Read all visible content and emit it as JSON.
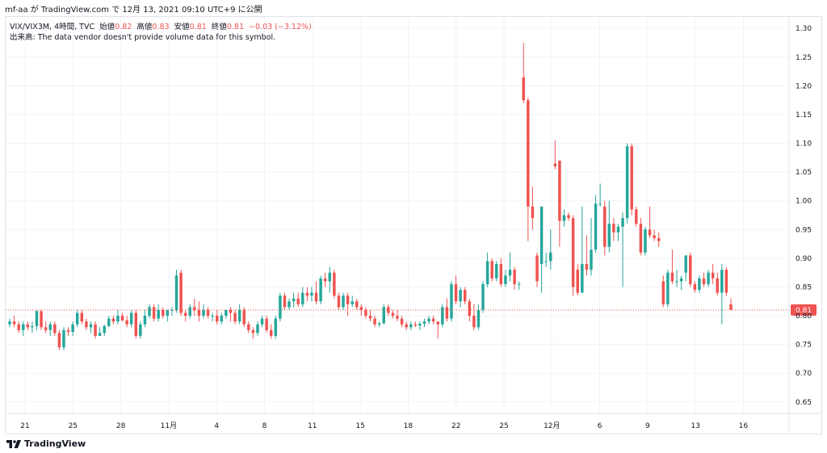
{
  "header": {
    "publish_info": "mf-aa が TradingView.com で 12月 13, 2021 09:10 UTC+9 に公開"
  },
  "legend": {
    "symbol": "VIX/VIX3M, 4時間, TVC",
    "open_label": "始値",
    "open_value": "0.82",
    "high_label": "高値",
    "high_value": "0.83",
    "low_label": "安値",
    "low_value": "0.81",
    "close_label": "終値",
    "close_value": "0.81",
    "change": "−0.03 (−3.12%)",
    "volume_note": "出来高: The data vendor doesn't provide volume data for this symbol."
  },
  "footer": {
    "brand": "TradingView"
  },
  "colors": {
    "up": "#26a69a",
    "down": "#ef5350",
    "grid": "#f0f3fa",
    "axis_text": "#131722"
  },
  "chart_data": {
    "type": "candlestick",
    "ylim": [
      0.63,
      1.32
    ],
    "y_ticks": [
      "1.30",
      "1.25",
      "1.20",
      "1.15",
      "1.10",
      "1.05",
      "1.00",
      "0.95",
      "0.90",
      "0.85",
      "0.80",
      "0.75",
      "0.70",
      "0.65"
    ],
    "x_ticks": [
      "21",
      "25",
      "28",
      "11月",
      "4",
      "8",
      "11",
      "15",
      "18",
      "22",
      "25",
      "12月",
      "6",
      "9",
      "13",
      "16"
    ],
    "last_price_label": "0.81",
    "last_price": 0.81,
    "candles": [
      {
        "o": 0.785,
        "h": 0.795,
        "l": 0.78,
        "c": 0.79
      },
      {
        "o": 0.79,
        "h": 0.8,
        "l": 0.78,
        "c": 0.785
      },
      {
        "o": 0.785,
        "h": 0.79,
        "l": 0.77,
        "c": 0.775
      },
      {
        "o": 0.775,
        "h": 0.79,
        "l": 0.765,
        "c": 0.785
      },
      {
        "o": 0.785,
        "h": 0.79,
        "l": 0.775,
        "c": 0.78
      },
      {
        "o": 0.78,
        "h": 0.79,
        "l": 0.77,
        "c": 0.782
      },
      {
        "o": 0.782,
        "h": 0.81,
        "l": 0.775,
        "c": 0.808
      },
      {
        "o": 0.808,
        "h": 0.81,
        "l": 0.775,
        "c": 0.78
      },
      {
        "o": 0.78,
        "h": 0.79,
        "l": 0.77,
        "c": 0.775
      },
      {
        "o": 0.775,
        "h": 0.79,
        "l": 0.765,
        "c": 0.785
      },
      {
        "o": 0.785,
        "h": 0.79,
        "l": 0.765,
        "c": 0.77
      },
      {
        "o": 0.77,
        "h": 0.775,
        "l": 0.74,
        "c": 0.745
      },
      {
        "o": 0.745,
        "h": 0.78,
        "l": 0.74,
        "c": 0.775
      },
      {
        "o": 0.775,
        "h": 0.78,
        "l": 0.765,
        "c": 0.772
      },
      {
        "o": 0.772,
        "h": 0.79,
        "l": 0.765,
        "c": 0.785
      },
      {
        "o": 0.785,
        "h": 0.81,
        "l": 0.78,
        "c": 0.805
      },
      {
        "o": 0.805,
        "h": 0.81,
        "l": 0.785,
        "c": 0.79
      },
      {
        "o": 0.79,
        "h": 0.795,
        "l": 0.775,
        "c": 0.78
      },
      {
        "o": 0.78,
        "h": 0.79,
        "l": 0.77,
        "c": 0.785
      },
      {
        "o": 0.785,
        "h": 0.79,
        "l": 0.76,
        "c": 0.765
      },
      {
        "o": 0.765,
        "h": 0.78,
        "l": 0.765,
        "c": 0.77
      },
      {
        "o": 0.77,
        "h": 0.785,
        "l": 0.765,
        "c": 0.782
      },
      {
        "o": 0.782,
        "h": 0.8,
        "l": 0.78,
        "c": 0.795
      },
      {
        "o": 0.795,
        "h": 0.8,
        "l": 0.785,
        "c": 0.79
      },
      {
        "o": 0.79,
        "h": 0.81,
        "l": 0.785,
        "c": 0.8
      },
      {
        "o": 0.8,
        "h": 0.805,
        "l": 0.79,
        "c": 0.792
      },
      {
        "o": 0.792,
        "h": 0.8,
        "l": 0.78,
        "c": 0.785
      },
      {
        "o": 0.785,
        "h": 0.81,
        "l": 0.78,
        "c": 0.805
      },
      {
        "o": 0.805,
        "h": 0.81,
        "l": 0.76,
        "c": 0.765
      },
      {
        "o": 0.765,
        "h": 0.79,
        "l": 0.76,
        "c": 0.785
      },
      {
        "o": 0.785,
        "h": 0.81,
        "l": 0.78,
        "c": 0.8
      },
      {
        "o": 0.8,
        "h": 0.82,
        "l": 0.795,
        "c": 0.815
      },
      {
        "o": 0.815,
        "h": 0.82,
        "l": 0.79,
        "c": 0.795
      },
      {
        "o": 0.795,
        "h": 0.82,
        "l": 0.79,
        "c": 0.81
      },
      {
        "o": 0.81,
        "h": 0.815,
        "l": 0.795,
        "c": 0.8
      },
      {
        "o": 0.8,
        "h": 0.81,
        "l": 0.79,
        "c": 0.81
      },
      {
        "o": 0.81,
        "h": 0.815,
        "l": 0.8,
        "c": 0.81
      },
      {
        "o": 0.81,
        "h": 0.88,
        "l": 0.805,
        "c": 0.87
      },
      {
        "o": 0.875,
        "h": 0.88,
        "l": 0.8,
        "c": 0.805
      },
      {
        "o": 0.805,
        "h": 0.81,
        "l": 0.79,
        "c": 0.8
      },
      {
        "o": 0.8,
        "h": 0.82,
        "l": 0.795,
        "c": 0.815
      },
      {
        "o": 0.815,
        "h": 0.83,
        "l": 0.8,
        "c": 0.81
      },
      {
        "o": 0.81,
        "h": 0.825,
        "l": 0.79,
        "c": 0.8
      },
      {
        "o": 0.8,
        "h": 0.82,
        "l": 0.795,
        "c": 0.81
      },
      {
        "o": 0.81,
        "h": 0.815,
        "l": 0.795,
        "c": 0.8
      },
      {
        "o": 0.8,
        "h": 0.805,
        "l": 0.79,
        "c": 0.8
      },
      {
        "o": 0.8,
        "h": 0.81,
        "l": 0.785,
        "c": 0.79
      },
      {
        "o": 0.79,
        "h": 0.805,
        "l": 0.785,
        "c": 0.8
      },
      {
        "o": 0.8,
        "h": 0.81,
        "l": 0.795,
        "c": 0.81
      },
      {
        "o": 0.81,
        "h": 0.815,
        "l": 0.79,
        "c": 0.805
      },
      {
        "o": 0.805,
        "h": 0.81,
        "l": 0.785,
        "c": 0.79
      },
      {
        "o": 0.79,
        "h": 0.82,
        "l": 0.785,
        "c": 0.81
      },
      {
        "o": 0.81,
        "h": 0.815,
        "l": 0.78,
        "c": 0.785
      },
      {
        "o": 0.785,
        "h": 0.79,
        "l": 0.77,
        "c": 0.775
      },
      {
        "o": 0.775,
        "h": 0.78,
        "l": 0.76,
        "c": 0.77
      },
      {
        "o": 0.77,
        "h": 0.79,
        "l": 0.765,
        "c": 0.785
      },
      {
        "o": 0.785,
        "h": 0.8,
        "l": 0.78,
        "c": 0.795
      },
      {
        "o": 0.795,
        "h": 0.8,
        "l": 0.77,
        "c": 0.775
      },
      {
        "o": 0.775,
        "h": 0.785,
        "l": 0.76,
        "c": 0.765
      },
      {
        "o": 0.765,
        "h": 0.8,
        "l": 0.76,
        "c": 0.795
      },
      {
        "o": 0.795,
        "h": 0.84,
        "l": 0.79,
        "c": 0.835
      },
      {
        "o": 0.835,
        "h": 0.84,
        "l": 0.81,
        "c": 0.815
      },
      {
        "o": 0.815,
        "h": 0.83,
        "l": 0.81,
        "c": 0.825
      },
      {
        "o": 0.825,
        "h": 0.84,
        "l": 0.815,
        "c": 0.83
      },
      {
        "o": 0.83,
        "h": 0.84,
        "l": 0.815,
        "c": 0.82
      },
      {
        "o": 0.82,
        "h": 0.85,
        "l": 0.815,
        "c": 0.84
      },
      {
        "o": 0.84,
        "h": 0.85,
        "l": 0.825,
        "c": 0.835
      },
      {
        "o": 0.835,
        "h": 0.85,
        "l": 0.825,
        "c": 0.84
      },
      {
        "o": 0.84,
        "h": 0.86,
        "l": 0.82,
        "c": 0.825
      },
      {
        "o": 0.825,
        "h": 0.87,
        "l": 0.82,
        "c": 0.865
      },
      {
        "o": 0.865,
        "h": 0.875,
        "l": 0.85,
        "c": 0.86
      },
      {
        "o": 0.86,
        "h": 0.885,
        "l": 0.84,
        "c": 0.875
      },
      {
        "o": 0.875,
        "h": 0.88,
        "l": 0.83,
        "c": 0.835
      },
      {
        "o": 0.835,
        "h": 0.84,
        "l": 0.81,
        "c": 0.815
      },
      {
        "o": 0.815,
        "h": 0.84,
        "l": 0.81,
        "c": 0.835
      },
      {
        "o": 0.835,
        "h": 0.84,
        "l": 0.8,
        "c": 0.82
      },
      {
        "o": 0.82,
        "h": 0.835,
        "l": 0.815,
        "c": 0.825
      },
      {
        "o": 0.825,
        "h": 0.83,
        "l": 0.81,
        "c": 0.815
      },
      {
        "o": 0.815,
        "h": 0.82,
        "l": 0.8,
        "c": 0.81
      },
      {
        "o": 0.81,
        "h": 0.815,
        "l": 0.795,
        "c": 0.8
      },
      {
        "o": 0.8,
        "h": 0.81,
        "l": 0.79,
        "c": 0.795
      },
      {
        "o": 0.795,
        "h": 0.8,
        "l": 0.78,
        "c": 0.785
      },
      {
        "o": 0.785,
        "h": 0.79,
        "l": 0.78,
        "c": 0.787
      },
      {
        "o": 0.787,
        "h": 0.82,
        "l": 0.785,
        "c": 0.815
      },
      {
        "o": 0.815,
        "h": 0.82,
        "l": 0.8,
        "c": 0.805
      },
      {
        "o": 0.805,
        "h": 0.81,
        "l": 0.795,
        "c": 0.8
      },
      {
        "o": 0.8,
        "h": 0.81,
        "l": 0.79,
        "c": 0.795
      },
      {
        "o": 0.795,
        "h": 0.8,
        "l": 0.78,
        "c": 0.785
      },
      {
        "o": 0.785,
        "h": 0.79,
        "l": 0.775,
        "c": 0.78
      },
      {
        "o": 0.78,
        "h": 0.79,
        "l": 0.775,
        "c": 0.785
      },
      {
        "o": 0.785,
        "h": 0.79,
        "l": 0.78,
        "c": 0.783
      },
      {
        "o": 0.783,
        "h": 0.79,
        "l": 0.775,
        "c": 0.786
      },
      {
        "o": 0.786,
        "h": 0.795,
        "l": 0.78,
        "c": 0.79
      },
      {
        "o": 0.79,
        "h": 0.8,
        "l": 0.785,
        "c": 0.795
      },
      {
        "o": 0.795,
        "h": 0.8,
        "l": 0.785,
        "c": 0.79
      },
      {
        "o": 0.79,
        "h": 0.79,
        "l": 0.76,
        "c": 0.785
      },
      {
        "o": 0.785,
        "h": 0.82,
        "l": 0.78,
        "c": 0.815
      },
      {
        "o": 0.815,
        "h": 0.83,
        "l": 0.79,
        "c": 0.795
      },
      {
        "o": 0.795,
        "h": 0.86,
        "l": 0.79,
        "c": 0.855
      },
      {
        "o": 0.855,
        "h": 0.87,
        "l": 0.82,
        "c": 0.825
      },
      {
        "o": 0.825,
        "h": 0.85,
        "l": 0.815,
        "c": 0.845
      },
      {
        "o": 0.845,
        "h": 0.85,
        "l": 0.82,
        "c": 0.825
      },
      {
        "o": 0.825,
        "h": 0.83,
        "l": 0.79,
        "c": 0.8
      },
      {
        "o": 0.8,
        "h": 0.82,
        "l": 0.775,
        "c": 0.78
      },
      {
        "o": 0.78,
        "h": 0.82,
        "l": 0.775,
        "c": 0.81
      },
      {
        "o": 0.81,
        "h": 0.86,
        "l": 0.805,
        "c": 0.855
      },
      {
        "o": 0.855,
        "h": 0.91,
        "l": 0.85,
        "c": 0.895
      },
      {
        "o": 0.895,
        "h": 0.9,
        "l": 0.86,
        "c": 0.865
      },
      {
        "o": 0.865,
        "h": 0.895,
        "l": 0.86,
        "c": 0.89
      },
      {
        "o": 0.89,
        "h": 0.9,
        "l": 0.85,
        "c": 0.855
      },
      {
        "o": 0.855,
        "h": 0.88,
        "l": 0.85,
        "c": 0.87
      },
      {
        "o": 0.87,
        "h": 0.91,
        "l": 0.86,
        "c": 0.88
      },
      {
        "o": 0.88,
        "h": 0.885,
        "l": 0.845,
        "c": 0.855
      },
      {
        "o": 0.855,
        "h": 0.86,
        "l": 0.845,
        "c": 0.855
      },
      {
        "o": 1.215,
        "h": 1.275,
        "l": 1.17,
        "c": 1.175
      },
      {
        "o": 1.175,
        "h": 1.18,
        "l": 0.93,
        "c": 0.99
      },
      {
        "o": 0.99,
        "h": 1.025,
        "l": 0.95,
        "c": 0.97
      },
      {
        "o": 0.905,
        "h": 0.91,
        "l": 0.85,
        "c": 0.86
      },
      {
        "o": 0.89,
        "h": 0.99,
        "l": 0.84,
        "c": 0.99
      },
      {
        "o": 0.895,
        "h": 0.91,
        "l": 0.885,
        "c": 0.895
      },
      {
        "o": 0.895,
        "h": 0.95,
        "l": 0.88,
        "c": 0.91
      },
      {
        "o": 1.065,
        "h": 1.105,
        "l": 1.055,
        "c": 1.06
      },
      {
        "o": 1.07,
        "h": 1.07,
        "l": 0.92,
        "c": 0.965
      },
      {
        "o": 0.965,
        "h": 0.985,
        "l": 0.955,
        "c": 0.975
      },
      {
        "o": 0.975,
        "h": 0.98,
        "l": 0.965,
        "c": 0.97
      },
      {
        "o": 0.97,
        "h": 0.975,
        "l": 0.835,
        "c": 0.85
      },
      {
        "o": 0.88,
        "h": 0.89,
        "l": 0.835,
        "c": 0.84
      },
      {
        "o": 0.84,
        "h": 0.99,
        "l": 0.84,
        "c": 0.89
      },
      {
        "o": 0.89,
        "h": 0.94,
        "l": 0.87,
        "c": 0.88
      },
      {
        "o": 0.88,
        "h": 0.97,
        "l": 0.87,
        "c": 0.915
      },
      {
        "o": 0.915,
        "h": 1.01,
        "l": 0.91,
        "c": 0.995
      },
      {
        "o": 0.995,
        "h": 1.03,
        "l": 0.99,
        "c": 0.995
      },
      {
        "o": 0.99,
        "h": 1.0,
        "l": 0.905,
        "c": 0.92
      },
      {
        "o": 0.92,
        "h": 1.0,
        "l": 0.91,
        "c": 0.96
      },
      {
        "o": 0.96,
        "h": 0.97,
        "l": 0.93,
        "c": 0.945
      },
      {
        "o": 0.945,
        "h": 0.96,
        "l": 0.93,
        "c": 0.955
      },
      {
        "o": 0.955,
        "h": 0.98,
        "l": 0.85,
        "c": 0.97
      },
      {
        "o": 0.97,
        "h": 1.1,
        "l": 0.96,
        "c": 1.095
      },
      {
        "o": 1.095,
        "h": 1.1,
        "l": 0.975,
        "c": 0.985
      },
      {
        "o": 0.985,
        "h": 0.99,
        "l": 0.955,
        "c": 0.96
      },
      {
        "o": 0.96,
        "h": 0.97,
        "l": 0.905,
        "c": 0.91
      },
      {
        "o": 0.91,
        "h": 0.955,
        "l": 0.905,
        "c": 0.95
      },
      {
        "o": 0.95,
        "h": 0.99,
        "l": 0.935,
        "c": 0.94
      },
      {
        "o": 0.94,
        "h": 0.95,
        "l": 0.93,
        "c": 0.935
      },
      {
        "o": 0.935,
        "h": 0.945,
        "l": 0.92,
        "c": 0.93
      },
      {
        "o": 0.86,
        "h": 0.87,
        "l": 0.815,
        "c": 0.82
      },
      {
        "o": 0.82,
        "h": 0.88,
        "l": 0.815,
        "c": 0.875
      },
      {
        "o": 0.875,
        "h": 0.915,
        "l": 0.855,
        "c": 0.86
      },
      {
        "o": 0.86,
        "h": 0.88,
        "l": 0.85,
        "c": 0.86
      },
      {
        "o": 0.86,
        "h": 0.87,
        "l": 0.845,
        "c": 0.865
      },
      {
        "o": 0.875,
        "h": 0.905,
        "l": 0.86,
        "c": 0.905
      },
      {
        "o": 0.905,
        "h": 0.91,
        "l": 0.85,
        "c": 0.855
      },
      {
        "o": 0.855,
        "h": 0.86,
        "l": 0.84,
        "c": 0.845
      },
      {
        "o": 0.845,
        "h": 0.87,
        "l": 0.84,
        "c": 0.865
      },
      {
        "o": 0.865,
        "h": 0.875,
        "l": 0.85,
        "c": 0.855
      },
      {
        "o": 0.855,
        "h": 0.88,
        "l": 0.85,
        "c": 0.875
      },
      {
        "o": 0.875,
        "h": 0.89,
        "l": 0.855,
        "c": 0.865
      },
      {
        "o": 0.865,
        "h": 0.875,
        "l": 0.835,
        "c": 0.84
      },
      {
        "o": 0.84,
        "h": 0.89,
        "l": 0.785,
        "c": 0.88
      },
      {
        "o": 0.88,
        "h": 0.885,
        "l": 0.835,
        "c": 0.84
      },
      {
        "o": 0.82,
        "h": 0.83,
        "l": 0.81,
        "c": 0.81
      }
    ]
  }
}
